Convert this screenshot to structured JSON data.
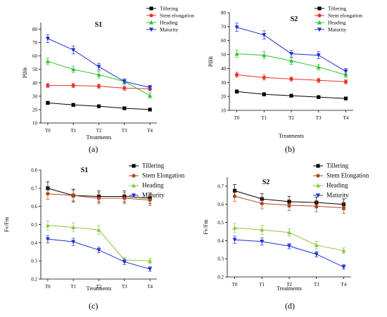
{
  "chart_data": [
    {
      "id": "a",
      "type": "line",
      "panel_label": "(a)",
      "title": "S1",
      "xlabel": "Treatments",
      "ylabel": "PIHt",
      "categories": [
        "T0",
        "T1",
        "T2",
        "T3",
        "T4"
      ],
      "ylim": [
        10,
        85
      ],
      "yticks": [
        10,
        20,
        30,
        40,
        50,
        60,
        70,
        80
      ],
      "legend_position": "top-right",
      "series": [
        {
          "name": "Tillering",
          "color": "#000000",
          "marker": "square",
          "values": [
            25,
            23.5,
            22.5,
            21,
            20
          ],
          "errors": [
            1.2,
            1.2,
            1.0,
            1.0,
            1.0
          ]
        },
        {
          "name": "Stem elongation",
          "color": "#e8312a",
          "marker": "circle",
          "values": [
            38,
            38,
            37.5,
            36,
            35.5
          ],
          "errors": [
            1.5,
            1.5,
            1.5,
            1.5,
            1.5
          ]
        },
        {
          "name": "Heading",
          "color": "#2ec42e",
          "marker": "triangle-up",
          "values": [
            56,
            50,
            46,
            41,
            30.5
          ],
          "errors": [
            2.5,
            2.5,
            2.5,
            2.0,
            2.0
          ]
        },
        {
          "name": "Maturity",
          "color": "#1c2fd9",
          "marker": "triangle-down",
          "values": [
            73,
            64.5,
            52,
            41,
            36.5
          ],
          "errors": [
            3.0,
            3.0,
            2.5,
            2.0,
            1.5
          ]
        }
      ]
    },
    {
      "id": "b",
      "type": "line",
      "panel_label": "(b)",
      "title": "S2",
      "xlabel": "Treatments",
      "ylabel": "PIHt",
      "categories": [
        "T0",
        "T1",
        "T2",
        "T3",
        "T4"
      ],
      "ylim": [
        10,
        80
      ],
      "yticks": [
        10,
        20,
        30,
        40,
        50,
        60,
        70,
        80
      ],
      "legend_position": "top-right",
      "series": [
        {
          "name": "Tillering",
          "color": "#000000",
          "marker": "square",
          "values": [
            23.5,
            21.5,
            20.5,
            19.5,
            18.5
          ],
          "errors": [
            1.2,
            1.2,
            1.0,
            1.0,
            1.0
          ]
        },
        {
          "name": "Stem elongation",
          "color": "#e8312a",
          "marker": "circle",
          "values": [
            35.5,
            33.5,
            32.5,
            31.5,
            30.5
          ],
          "errors": [
            1.8,
            1.8,
            1.5,
            1.5,
            1.5
          ]
        },
        {
          "name": "Heading",
          "color": "#2ec42e",
          "marker": "triangle-up",
          "values": [
            50.5,
            49.5,
            45.5,
            41,
            35.5
          ],
          "errors": [
            2.5,
            2.5,
            2.5,
            2.0,
            2.0
          ]
        },
        {
          "name": "Maturity",
          "color": "#1c2fd9",
          "marker": "triangle-down",
          "values": [
            69.5,
            64,
            50.5,
            49.5,
            38
          ],
          "errors": [
            3.0,
            3.0,
            2.5,
            2.5,
            2.0
          ]
        }
      ]
    },
    {
      "id": "c",
      "type": "line",
      "panel_label": "(c)",
      "title": "S1",
      "xlabel": "Treatments",
      "ylabel": "Fv/Fm",
      "categories": [
        "T0",
        "T1",
        "T2",
        "T3",
        "T4"
      ],
      "ylim": [
        0.2,
        0.8
      ],
      "yticks": [
        0.2,
        0.3,
        0.4,
        0.5,
        0.6,
        0.7,
        0.8
      ],
      "legend_position": "top-right",
      "series": [
        {
          "name": "Tillering",
          "color": "#000000",
          "marker": "square",
          "values": [
            0.7,
            0.66,
            0.655,
            0.655,
            0.645
          ],
          "errors": [
            0.035,
            0.035,
            0.03,
            0.03,
            0.03
          ]
        },
        {
          "name": "Stem Elongation",
          "color": "#b5451b",
          "marker": "circle",
          "values": [
            0.67,
            0.66,
            0.645,
            0.645,
            0.635
          ],
          "errors": [
            0.03,
            0.03,
            0.03,
            0.03,
            0.03
          ]
        },
        {
          "name": "Heading",
          "color": "#8dc63f",
          "marker": "triangle-up",
          "values": [
            0.495,
            0.485,
            0.47,
            0.305,
            0.3
          ],
          "errors": [
            0.025,
            0.025,
            0.025,
            0.015,
            0.015
          ]
        },
        {
          "name": "Maturity",
          "color": "#1c2fd9",
          "marker": "triangle-down",
          "values": [
            0.42,
            0.405,
            0.36,
            0.295,
            0.255
          ],
          "errors": [
            0.02,
            0.02,
            0.015,
            0.015,
            0.012
          ]
        }
      ]
    },
    {
      "id": "d",
      "type": "line",
      "panel_label": "(d)",
      "title": "S2",
      "xlabel": "Treatments",
      "ylabel": "Fv/Fm",
      "categories": [
        "T0",
        "T1",
        "T2",
        "T3",
        "T4"
      ],
      "ylim": [
        0.2,
        0.75
      ],
      "yticks": [
        0.2,
        0.3,
        0.4,
        0.5,
        0.6,
        0.7
      ],
      "legend_position": "top-right",
      "series": [
        {
          "name": "Tillering",
          "color": "#000000",
          "marker": "square",
          "values": [
            0.675,
            0.63,
            0.615,
            0.61,
            0.6
          ],
          "errors": [
            0.035,
            0.03,
            0.03,
            0.03,
            0.03
          ]
        },
        {
          "name": "Stem Elongation",
          "color": "#b5451b",
          "marker": "circle",
          "values": [
            0.645,
            0.605,
            0.595,
            0.59,
            0.58
          ],
          "errors": [
            0.03,
            0.03,
            0.03,
            0.03,
            0.03
          ]
        },
        {
          "name": "Heading",
          "color": "#8dc63f",
          "marker": "triangle-up",
          "values": [
            0.47,
            0.46,
            0.445,
            0.375,
            0.345
          ],
          "errors": [
            0.025,
            0.025,
            0.02,
            0.02,
            0.015
          ]
        },
        {
          "name": "Maturity",
          "color": "#1c2fd9",
          "marker": "triangle-down",
          "values": [
            0.405,
            0.395,
            0.37,
            0.325,
            0.255
          ],
          "errors": [
            0.02,
            0.02,
            0.015,
            0.015,
            0.012
          ]
        }
      ]
    }
  ]
}
